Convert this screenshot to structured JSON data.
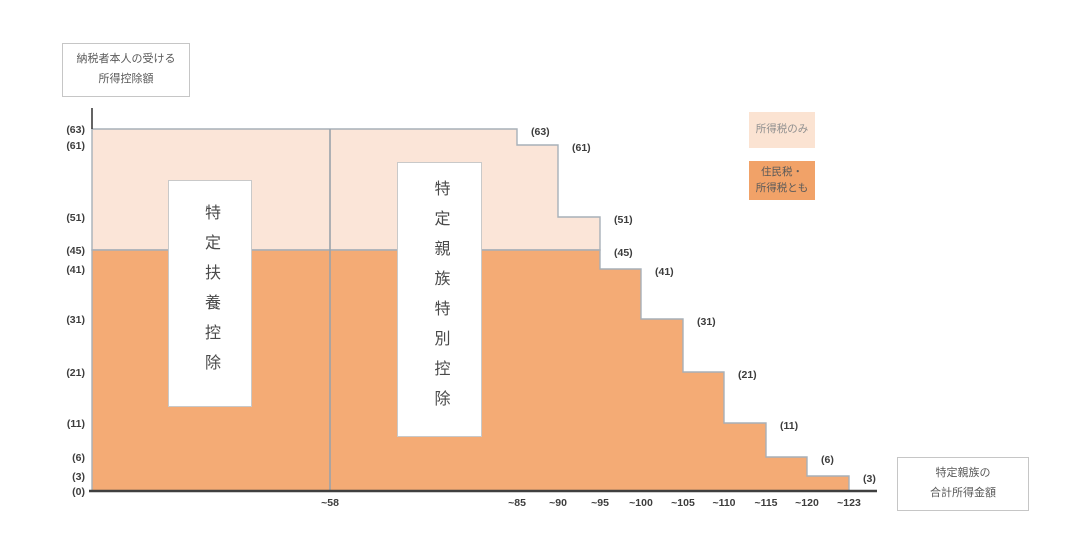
{
  "y_axis_box": {
    "lines": [
      "納税者本人の受ける",
      "所得控除額"
    ]
  },
  "x_axis_box": {
    "lines": [
      "特定親族の",
      "合計所得金額"
    ]
  },
  "legend": {
    "items": [
      {
        "label_lines": [
          "所得税のみ"
        ],
        "color": "#fbe3d2"
      },
      {
        "label_lines": [
          "住民税・",
          "所得税とも"
        ],
        "color": "#f1a268"
      }
    ]
  },
  "annotations": {
    "left_box": {
      "text": "特定扶養控除"
    },
    "right_box": {
      "text": "特定親族特別控除"
    }
  },
  "chart_data": {
    "type": "area",
    "style": "stacked-step",
    "title": "",
    "xlabel": "特定親族の合計所得金額",
    "ylabel": "納税者本人の受ける所得控除額",
    "x_ticks": [
      "~58",
      "~85",
      "~90",
      "~95",
      "~100",
      "~105",
      "~110",
      "~115",
      "~120",
      "~123"
    ],
    "y_ticks": [
      {
        "value": 63,
        "label": "(63)"
      },
      {
        "value": 61,
        "label": "(61)"
      },
      {
        "value": 51,
        "label": "(51)"
      },
      {
        "value": 45,
        "label": "(45)"
      },
      {
        "value": 41,
        "label": "(41)"
      },
      {
        "value": 31,
        "label": "(31)"
      },
      {
        "value": 21,
        "label": "(21)"
      },
      {
        "value": 11,
        "label": "(11)"
      },
      {
        "value": 6,
        "label": "(6)"
      },
      {
        "value": 3,
        "label": "(3)"
      },
      {
        "value": 0,
        "label": "(0)"
      }
    ],
    "regions": [
      {
        "name": "所得税のみ",
        "fill": "#fbe5d8",
        "base_value": 45,
        "steps": [
          {
            "x_to": "~85",
            "value": 63
          },
          {
            "x_to": "~90",
            "value": 61
          },
          {
            "x_to": "~95",
            "value": 51
          }
        ]
      },
      {
        "name": "住民税・所得税とも",
        "fill": "#f4ab75",
        "base_value": 0,
        "steps": [
          {
            "x_to": "~95",
            "value": 45
          },
          {
            "x_to": "~100",
            "value": 41
          },
          {
            "x_to": "~105",
            "value": 31
          },
          {
            "x_to": "~110",
            "value": 21
          },
          {
            "x_to": "~115",
            "value": 11
          },
          {
            "x_to": "~120",
            "value": 6
          },
          {
            "x_to": "~123",
            "value": 3
          }
        ]
      }
    ],
    "brackets": [
      {
        "income": "~85",
        "income_tax": 63,
        "resident_and_income_tax": 45
      },
      {
        "income": "~90",
        "income_tax": 61,
        "resident_and_income_tax": 45
      },
      {
        "income": "~95",
        "income_tax": 51,
        "resident_and_income_tax": 45
      },
      {
        "income": "~100",
        "income_tax": 41,
        "resident_and_income_tax": 41
      },
      {
        "income": "~105",
        "income_tax": 31,
        "resident_and_income_tax": 31
      },
      {
        "income": "~110",
        "income_tax": 21,
        "resident_and_income_tax": 21
      },
      {
        "income": "~115",
        "income_tax": 11,
        "resident_and_income_tax": 11
      },
      {
        "income": "~120",
        "income_tax": 6,
        "resident_and_income_tax": 6
      },
      {
        "income": "~123",
        "income_tax": 3,
        "resident_and_income_tax": 3
      }
    ],
    "divider_x": "~58",
    "colors": {
      "outline": "#a7b0b8",
      "divider": "#9aa3ab",
      "axis": "#3f3f3f",
      "tick_text": "#3d3d3d"
    }
  }
}
